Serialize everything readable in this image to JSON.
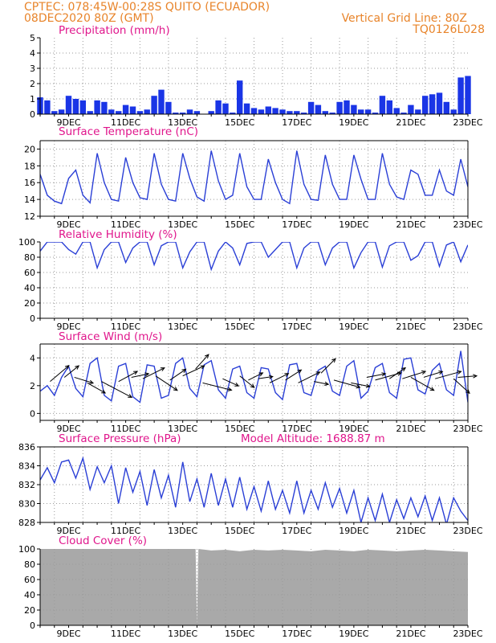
{
  "header": {
    "left_line1": "CPTEC:  078:45W-00:28S  QUITO (ECUADOR)",
    "left_line2": "08DEC2020 80Z (GMT)",
    "right_line1": "Vertical Grid Line: 80Z",
    "right_line2": "TQ0126L028"
  },
  "colors": {
    "header": "#e8842a",
    "title": "#e0168c",
    "series": "#2a3fd6",
    "bars": "#1a35e6",
    "cloud": "#a9a9a9",
    "arrow": "#000000",
    "grid": "#9a9a9a"
  },
  "x_tick_labels": [
    "9DEC",
    "11DEC",
    "13DEC",
    "15DEC",
    "17DEC",
    "19DEC",
    "21DEC",
    "23DEC"
  ],
  "chart_data": [
    {
      "id": "precip",
      "type": "bar",
      "title": "Precipitation (mm/h)",
      "ylim": [
        0,
        5
      ],
      "yticks": [
        0,
        1,
        2,
        3,
        4,
        5
      ],
      "xlim": [
        8.0,
        23.0
      ],
      "x": [
        8.0,
        8.25,
        8.5,
        8.75,
        9.0,
        9.25,
        9.5,
        9.75,
        10.0,
        10.25,
        10.5,
        10.75,
        11.0,
        11.25,
        11.5,
        11.75,
        12.0,
        12.25,
        12.5,
        12.75,
        13.0,
        13.25,
        13.5,
        13.75,
        14.0,
        14.25,
        14.5,
        14.75,
        15.0,
        15.25,
        15.5,
        15.75,
        16.0,
        16.25,
        16.5,
        16.75,
        17.0,
        17.25,
        17.5,
        17.75,
        18.0,
        18.25,
        18.5,
        18.75,
        19.0,
        19.25,
        19.5,
        19.75,
        20.0,
        20.25,
        20.5,
        20.75,
        21.0,
        21.25,
        21.5,
        21.75,
        22.0,
        22.25,
        22.5,
        22.75,
        23.0
      ],
      "values": [
        1.1,
        0.9,
        0.2,
        0.3,
        1.2,
        1.0,
        0.9,
        0.2,
        0.9,
        0.8,
        0.3,
        0.2,
        0.6,
        0.5,
        0.2,
        0.3,
        1.2,
        1.6,
        0.8,
        0.1,
        0.1,
        0.3,
        0.2,
        0.0,
        0.2,
        0.9,
        0.7,
        0.1,
        2.2,
        0.7,
        0.4,
        0.3,
        0.5,
        0.4,
        0.3,
        0.2,
        0.2,
        0.1,
        0.8,
        0.6,
        0.2,
        0.1,
        0.8,
        0.9,
        0.6,
        0.3,
        0.3,
        0.1,
        1.2,
        0.9,
        0.4,
        0.1,
        0.6,
        0.3,
        1.2,
        1.3,
        1.4,
        0.8,
        0.3,
        2.4,
        2.5
      ]
    },
    {
      "id": "temp",
      "type": "line",
      "title": "Surface Temperature (nC)",
      "ylim": [
        12,
        21
      ],
      "yticks": [
        12,
        14,
        16,
        18,
        20
      ],
      "xlim": [
        8.0,
        23.0
      ],
      "x": [
        8.0,
        8.25,
        8.5,
        8.75,
        9.0,
        9.25,
        9.5,
        9.75,
        10.0,
        10.25,
        10.5,
        10.75,
        11.0,
        11.25,
        11.5,
        11.75,
        12.0,
        12.25,
        12.5,
        12.75,
        13.0,
        13.25,
        13.5,
        13.75,
        14.0,
        14.25,
        14.5,
        14.75,
        15.0,
        15.25,
        15.5,
        15.75,
        16.0,
        16.25,
        16.5,
        16.75,
        17.0,
        17.25,
        17.5,
        17.75,
        18.0,
        18.25,
        18.5,
        18.75,
        19.0,
        19.25,
        19.5,
        19.75,
        20.0,
        20.25,
        20.5,
        20.75,
        21.0,
        21.25,
        21.5,
        21.75,
        22.0,
        22.25,
        22.5,
        22.75,
        23.0
      ],
      "values": [
        17.0,
        14.5,
        13.8,
        13.5,
        16.5,
        17.5,
        14.5,
        13.6,
        19.5,
        16.0,
        14.0,
        13.8,
        19.0,
        16.0,
        14.2,
        14.0,
        19.5,
        15.8,
        14.0,
        13.8,
        19.5,
        16.5,
        14.3,
        13.8,
        19.8,
        16.2,
        14.0,
        14.5,
        19.5,
        15.5,
        14.0,
        14.0,
        18.8,
        16.0,
        14.0,
        13.5,
        19.8,
        15.8,
        14.0,
        13.9,
        19.3,
        15.8,
        14.0,
        14.0,
        19.3,
        16.4,
        14.0,
        14.0,
        19.5,
        15.8,
        14.3,
        14.0,
        17.5,
        17.0,
        14.5,
        14.5,
        17.5,
        15.0,
        14.5,
        18.8,
        15.5
      ]
    },
    {
      "id": "rh",
      "type": "line",
      "title": "Relative Humidity (%)",
      "ylim": [
        0,
        100
      ],
      "yticks": [
        0,
        20,
        40,
        60,
        80,
        100
      ],
      "xlim": [
        8.0,
        23.0
      ],
      "x": [
        8.0,
        8.25,
        8.5,
        8.75,
        9.0,
        9.25,
        9.5,
        9.75,
        10.0,
        10.25,
        10.5,
        10.75,
        11.0,
        11.25,
        11.5,
        11.75,
        12.0,
        12.25,
        12.5,
        12.75,
        13.0,
        13.25,
        13.5,
        13.75,
        14.0,
        14.25,
        14.5,
        14.75,
        15.0,
        15.25,
        15.5,
        15.75,
        16.0,
        16.25,
        16.5,
        16.75,
        17.0,
        17.25,
        17.5,
        17.75,
        18.0,
        18.25,
        18.5,
        18.75,
        19.0,
        19.25,
        19.5,
        19.75,
        20.0,
        20.25,
        20.5,
        20.75,
        21.0,
        21.25,
        21.5,
        21.75,
        22.0,
        22.25,
        22.5,
        22.75,
        23.0
      ],
      "values": [
        88,
        100,
        100,
        100,
        90,
        84,
        100,
        100,
        66,
        90,
        100,
        100,
        73,
        92,
        100,
        100,
        70,
        95,
        100,
        100,
        66,
        87,
        100,
        100,
        64,
        88,
        100,
        92,
        70,
        98,
        100,
        100,
        80,
        90,
        100,
        100,
        66,
        92,
        100,
        100,
        70,
        92,
        100,
        100,
        66,
        86,
        100,
        100,
        67,
        95,
        100,
        100,
        76,
        82,
        100,
        100,
        68,
        96,
        100,
        74,
        96
      ]
    },
    {
      "id": "wind",
      "type": "line",
      "title": "Surface Wind (m/s)",
      "ylim": [
        -0.5,
        5.0
      ],
      "yticks": [
        0,
        2,
        4
      ],
      "xlim": [
        8.0,
        23.0
      ],
      "x": [
        8.0,
        8.25,
        8.5,
        8.75,
        9.0,
        9.25,
        9.5,
        9.75,
        10.0,
        10.25,
        10.5,
        10.75,
        11.0,
        11.25,
        11.5,
        11.75,
        12.0,
        12.25,
        12.5,
        12.75,
        13.0,
        13.25,
        13.5,
        13.75,
        14.0,
        14.25,
        14.5,
        14.75,
        15.0,
        15.25,
        15.5,
        15.75,
        16.0,
        16.25,
        16.5,
        16.75,
        17.0,
        17.25,
        17.5,
        17.75,
        18.0,
        18.25,
        18.5,
        18.75,
        19.0,
        19.25,
        19.5,
        19.75,
        20.0,
        20.25,
        20.5,
        20.75,
        21.0,
        21.25,
        21.5,
        21.75,
        22.0,
        22.25,
        22.5,
        22.75,
        23.0
      ],
      "values": [
        1.6,
        2.0,
        1.3,
        2.6,
        3.4,
        1.8,
        1.2,
        3.6,
        4.0,
        1.3,
        0.9,
        3.4,
        3.6,
        1.2,
        0.8,
        3.5,
        3.4,
        1.1,
        1.3,
        3.6,
        4.0,
        1.8,
        1.2,
        3.5,
        3.8,
        1.7,
        1.1,
        3.2,
        3.4,
        1.5,
        1.1,
        3.3,
        3.2,
        1.5,
        1.0,
        3.5,
        3.6,
        1.5,
        1.3,
        3.1,
        3.4,
        1.6,
        1.3,
        3.4,
        3.8,
        1.1,
        1.6,
        3.3,
        3.6,
        1.5,
        1.1,
        3.9,
        4.0,
        1.7,
        1.4,
        3.1,
        3.6,
        1.7,
        1.3,
        4.5,
        0.8
      ],
      "vectors": [
        {
          "x": 8.35,
          "y": 2.3,
          "u": 2.6,
          "v": 2.2
        },
        {
          "x": 8.85,
          "y": 2.6,
          "u": 2.0,
          "v": 1.6
        },
        {
          "x": 9.2,
          "y": 2.6,
          "u": 2.6,
          "v": -0.8
        },
        {
          "x": 9.65,
          "y": 2.2,
          "u": 2.5,
          "v": -1.4
        },
        {
          "x": 10.15,
          "y": 2.3,
          "u": 4.2,
          "v": -2.2
        },
        {
          "x": 10.75,
          "y": 2.3,
          "u": 2.6,
          "v": 1.4
        },
        {
          "x": 11.2,
          "y": 2.6,
          "u": 2.4,
          "v": 0.5
        },
        {
          "x": 11.6,
          "y": 2.5,
          "u": 3.0,
          "v": 1.5
        },
        {
          "x": 12.05,
          "y": 2.7,
          "u": 3.0,
          "v": -2.0
        },
        {
          "x": 12.55,
          "y": 2.4,
          "u": 2.2,
          "v": 1.5
        },
        {
          "x": 13.0,
          "y": 2.7,
          "u": 3.0,
          "v": 1.4
        },
        {
          "x": 13.45,
          "y": 3.2,
          "u": 1.8,
          "v": 2.0
        },
        {
          "x": 13.7,
          "y": 2.2,
          "u": 4.0,
          "v": -1.0
        },
        {
          "x": 14.4,
          "y": 2.5,
          "u": 2.2,
          "v": -1.0
        },
        {
          "x": 15.0,
          "y": 2.7,
          "u": 2.0,
          "v": -1.6
        },
        {
          "x": 15.3,
          "y": 2.4,
          "u": 2.0,
          "v": 1.0
        },
        {
          "x": 15.65,
          "y": 2.5,
          "u": 2.0,
          "v": 0.3
        },
        {
          "x": 16.05,
          "y": 2.2,
          "u": 2.6,
          "v": 1.3
        },
        {
          "x": 16.6,
          "y": 2.4,
          "u": 2.2,
          "v": 1.4
        },
        {
          "x": 17.05,
          "y": 2.2,
          "u": 3.0,
          "v": 1.5
        },
        {
          "x": 17.6,
          "y": 2.3,
          "u": 2.0,
          "v": -0.4
        },
        {
          "x": 17.85,
          "y": 2.9,
          "u": 2.0,
          "v": 2.0
        },
        {
          "x": 18.3,
          "y": 2.4,
          "u": 3.6,
          "v": -1.0
        },
        {
          "x": 18.9,
          "y": 2.2,
          "u": 2.6,
          "v": -0.5
        },
        {
          "x": 19.45,
          "y": 2.6,
          "u": 2.6,
          "v": 0.5
        },
        {
          "x": 19.75,
          "y": 2.4,
          "u": 3.6,
          "v": 1.0
        },
        {
          "x": 20.25,
          "y": 2.5,
          "u": 2.2,
          "v": 1.5
        },
        {
          "x": 20.7,
          "y": 2.5,
          "u": 3.2,
          "v": 1.0
        },
        {
          "x": 21.0,
          "y": 2.6,
          "u": 3.2,
          "v": -1.8
        },
        {
          "x": 21.45,
          "y": 2.6,
          "u": 2.6,
          "v": 0.8
        },
        {
          "x": 21.85,
          "y": 2.5,
          "u": 3.6,
          "v": 1.0
        },
        {
          "x": 22.5,
          "y": 2.5,
          "u": 2.2,
          "v": -2.0
        },
        {
          "x": 22.65,
          "y": 2.6,
          "u": 2.6,
          "v": 0.2
        }
      ]
    },
    {
      "id": "press",
      "type": "line",
      "title": "Surface Pressure (hPa)",
      "subtitle": "Model Altitude: 1688.87 m",
      "ylim": [
        828,
        836
      ],
      "yticks": [
        828,
        830,
        832,
        834,
        836
      ],
      "xlim": [
        8.0,
        23.0
      ],
      "x": [
        8.0,
        8.25,
        8.5,
        8.75,
        9.0,
        9.25,
        9.5,
        9.75,
        10.0,
        10.25,
        10.5,
        10.75,
        11.0,
        11.25,
        11.5,
        11.75,
        12.0,
        12.25,
        12.5,
        12.75,
        13.0,
        13.25,
        13.5,
        13.75,
        14.0,
        14.25,
        14.5,
        14.75,
        15.0,
        15.25,
        15.5,
        15.75,
        16.0,
        16.25,
        16.5,
        16.75,
        17.0,
        17.25,
        17.5,
        17.75,
        18.0,
        18.25,
        18.5,
        18.75,
        19.0,
        19.25,
        19.5,
        19.75,
        20.0,
        20.25,
        20.5,
        20.75,
        21.0,
        21.25,
        21.5,
        21.75,
        22.0,
        22.25,
        22.5,
        22.75,
        23.0
      ],
      "values": [
        832.5,
        833.8,
        832.2,
        834.4,
        834.6,
        832.7,
        834.8,
        831.5,
        833.9,
        832.2,
        834.0,
        830.0,
        833.8,
        831.2,
        833.4,
        829.8,
        833.6,
        830.6,
        833.0,
        829.6,
        834.4,
        830.2,
        832.6,
        829.6,
        833.2,
        829.8,
        832.6,
        829.6,
        832.8,
        829.4,
        831.8,
        829.2,
        832.4,
        829.4,
        831.4,
        829.0,
        832.4,
        829.0,
        831.4,
        829.4,
        832.2,
        829.6,
        831.6,
        829.0,
        831.4,
        828.0,
        830.6,
        828.2,
        831.0,
        828.0,
        830.4,
        828.4,
        830.6,
        828.6,
        830.8,
        828.2,
        830.6,
        827.8,
        830.6,
        829.2,
        828.2
      ]
    },
    {
      "id": "cloud",
      "type": "area",
      "title": "Cloud Cover (%)",
      "ylim": [
        0,
        100
      ],
      "yticks": [
        0,
        20,
        40,
        60,
        80,
        100
      ],
      "xlim": [
        8.0,
        23.0
      ],
      "x": [
        8.0,
        8.5,
        9.0,
        9.5,
        10.0,
        10.5,
        11.0,
        11.5,
        12.0,
        12.5,
        13.0,
        13.45,
        13.5,
        13.55,
        14.0,
        14.5,
        15.0,
        15.5,
        16.0,
        16.5,
        17.0,
        17.5,
        18.0,
        18.5,
        19.0,
        19.5,
        20.0,
        20.5,
        21.0,
        21.5,
        22.0,
        22.5,
        23.0
      ],
      "values": [
        100,
        100,
        100,
        100,
        100,
        100,
        100,
        100,
        100,
        100,
        100,
        100,
        0,
        100,
        98,
        99,
        97,
        99,
        98,
        99,
        98,
        97,
        99,
        98,
        97,
        99,
        98,
        97,
        98,
        99,
        98,
        97,
        96
      ]
    }
  ]
}
